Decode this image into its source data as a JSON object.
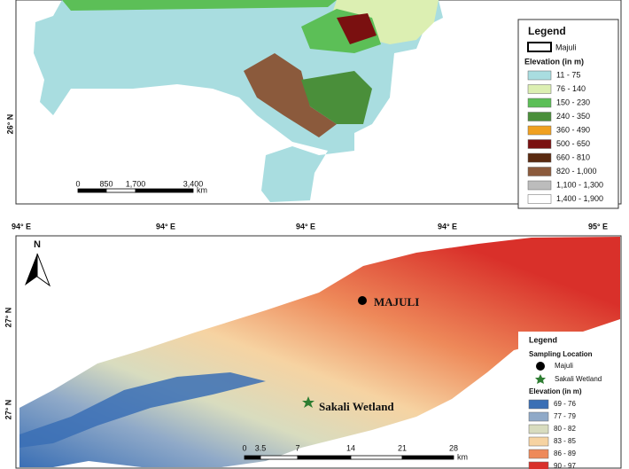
{
  "top_map": {
    "lat_label": "26° N",
    "legend": {
      "title": "Legend",
      "boundary": "Majuli",
      "elevation_title": "Elevation (in m)",
      "classes": [
        {
          "label": "11 - 75",
          "color": "#a9dde0"
        },
        {
          "label": "76 - 140",
          "color": "#dcefb2"
        },
        {
          "label": "150 - 230",
          "color": "#5cbf57"
        },
        {
          "label": "240 - 350",
          "color": "#4a8f3a"
        },
        {
          "label": "360 - 490",
          "color": "#f0a020"
        },
        {
          "label": "500 - 650",
          "color": "#7a1010"
        },
        {
          "label": "660 - 810",
          "color": "#5a2a10"
        },
        {
          "label": "820 - 1,000",
          "color": "#8b5a3c"
        },
        {
          "label": "1,100 - 1,300",
          "color": "#bcbcbc"
        },
        {
          "label": "1,400 - 1,900",
          "color": "#ffffff"
        }
      ]
    },
    "scale_bar": {
      "labels": [
        "0",
        "850",
        "1,700",
        "3,400"
      ],
      "unit": "km"
    }
  },
  "bottom_map": {
    "lon_labels": [
      "94° E",
      "94° E",
      "94° E",
      "94° E",
      "95° E"
    ],
    "lat_labels": [
      "27° N",
      "27° N"
    ],
    "north": "N",
    "site_1": "MAJULI",
    "site_2": "Sakali Wetland",
    "legend": {
      "title": "Legend",
      "sampling_title": "Sampling Location",
      "sampling": [
        "Majuli",
        "Sakali Wetland"
      ],
      "elevation_title": "Elevation (in m)",
      "classes": [
        {
          "label": "69 - 76",
          "color": "#3a6fb5"
        },
        {
          "label": "77 - 79",
          "color": "#8fa9c8"
        },
        {
          "label": "80 - 82",
          "color": "#d8dcbf"
        },
        {
          "label": "83 - 85",
          "color": "#f6d3a2"
        },
        {
          "label": "86 - 89",
          "color": "#ee8a5a"
        },
        {
          "label": "90 - 97",
          "color": "#d9302a"
        }
      ]
    },
    "scale_bar": {
      "labels": [
        "0",
        "3.5",
        "7",
        "14",
        "21",
        "28"
      ],
      "unit": "km"
    }
  }
}
